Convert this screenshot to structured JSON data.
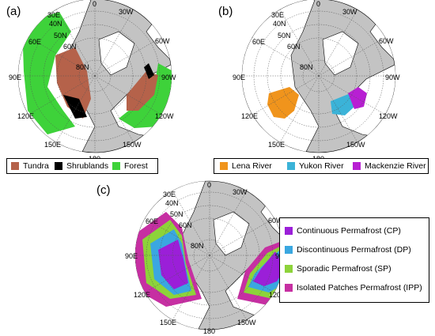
{
  "panels": [
    {
      "letter": "(a)",
      "legend": [
        {
          "label": "Tundra",
          "color": "#b5624a"
        },
        {
          "label": "Shrublands",
          "color": "#000000"
        },
        {
          "label": "Forest",
          "color": "#3ed23a"
        }
      ]
    },
    {
      "letter": "(b)",
      "legend": [
        {
          "label": "Lena River",
          "color": "#f0941c"
        },
        {
          "label": "Yukon River",
          "color": "#3bb3d8"
        },
        {
          "label": "Mackenzie River",
          "color": "#b81fd3"
        }
      ]
    },
    {
      "letter": "(c)",
      "legend": [
        {
          "label": "Continuous Permafrost (CP)",
          "color": "#9b1fd8"
        },
        {
          "label": "Discontinuous Permafrost (DP)",
          "color": "#3aa7e0"
        },
        {
          "label": "Sporadic Permafrost (SP)",
          "color": "#8dd33a"
        },
        {
          "label": "Isolated Patches Permafrost (IPP)",
          "color": "#c62fa2"
        }
      ]
    }
  ],
  "map_labels": {
    "lon": [
      "0",
      "30W",
      "30E",
      "60E",
      "60W",
      "90E",
      "90W",
      "120E",
      "120W",
      "150E",
      "150W",
      "180"
    ],
    "lat": [
      "40N",
      "50N",
      "60N",
      "80N"
    ]
  },
  "colors": {
    "ocean": "#c3c3c3",
    "land": "#ffffff",
    "coast": "#000000",
    "grid": "#555555"
  }
}
